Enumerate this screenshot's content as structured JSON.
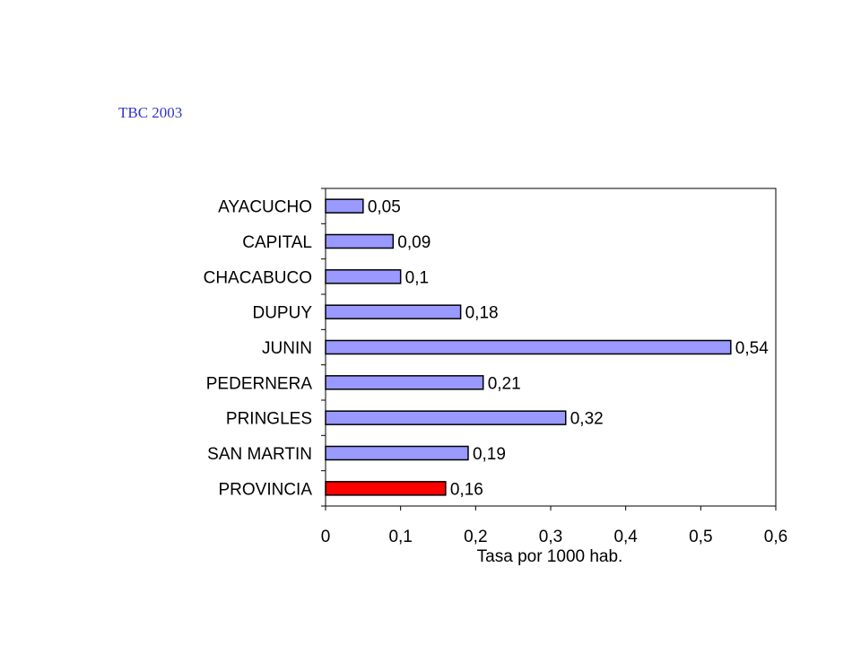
{
  "slide": {
    "title": "TBC 2003"
  },
  "chart_data": {
    "type": "bar",
    "orientation": "horizontal",
    "title": "",
    "xlabel": "Tasa por 1000 hab.",
    "ylabel": "",
    "xlim": [
      0,
      0.6
    ],
    "xticks": [
      0,
      0.1,
      0.2,
      0.3,
      0.4,
      0.5,
      0.6
    ],
    "xtick_labels": [
      "0",
      "0,1",
      "0,2",
      "0,3",
      "0,4",
      "0,5",
      "0,6"
    ],
    "grid": false,
    "legend": "none",
    "categories": [
      "AYACUCHO",
      "CAPITAL",
      "CHACABUCO",
      "DUPUY",
      "JUNIN",
      "PEDERNERA",
      "PRINGLES",
      "SAN MARTIN",
      "PROVINCIA"
    ],
    "values": [
      0.05,
      0.09,
      0.1,
      0.18,
      0.54,
      0.21,
      0.32,
      0.19,
      0.16
    ],
    "value_labels": [
      "0,05",
      "0,09",
      "0,1",
      "0,18",
      "0,54",
      "0,21",
      "0,32",
      "0,19",
      "0,16"
    ],
    "colors": {
      "bar": "#9999ff",
      "highlight_bar": "#ff0000",
      "highlight_category": "PROVINCIA",
      "title": "#3333cc"
    }
  }
}
